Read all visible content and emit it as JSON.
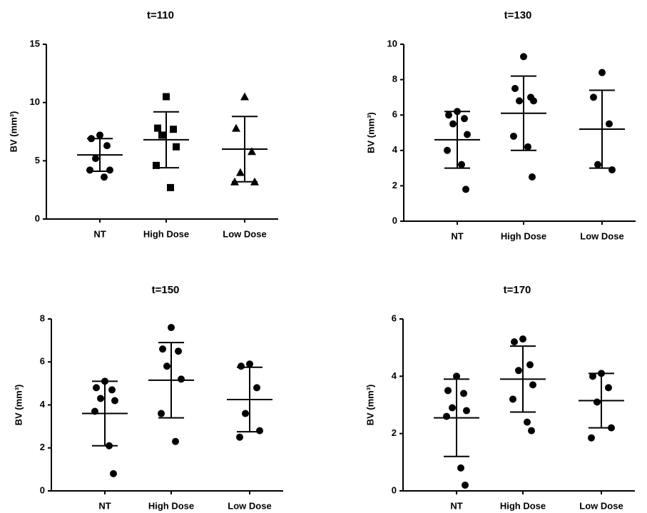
{
  "chart_data": [
    {
      "type": "dot",
      "title": "t=110",
      "y_label": "BV (mm³)",
      "ylim": [
        0,
        15
      ],
      "yticks": [
        0,
        5,
        10,
        15
      ],
      "groups": [
        {
          "name": "NT",
          "marker": "circle",
          "values": [
            7.2,
            6.9,
            6.3,
            5.2,
            4.2,
            4.2,
            3.6
          ],
          "mean": 5.5,
          "sd": 1.4
        },
        {
          "name": "High Dose",
          "marker": "square",
          "values": [
            10.5,
            7.8,
            7.7,
            7.2,
            6.2,
            4.6,
            2.7
          ],
          "mean": 6.8,
          "sd": 2.4
        },
        {
          "name": "Low Dose",
          "marker": "triangle",
          "values": [
            10.5,
            7.8,
            5.8,
            4.0,
            3.2,
            3.2
          ],
          "mean": 6.0,
          "sd": 2.8
        }
      ]
    },
    {
      "type": "dot",
      "title": "t=130",
      "y_label": "BV (mm³)",
      "ylim": [
        0,
        10
      ],
      "yticks": [
        0,
        2,
        4,
        6,
        8,
        10
      ],
      "groups": [
        {
          "name": "NT",
          "marker": "circle",
          "values": [
            6.2,
            6.0,
            5.8,
            5.5,
            4.9,
            4.0,
            3.2,
            1.8
          ],
          "mean": 4.6,
          "sd": 1.6
        },
        {
          "name": "High Dose",
          "marker": "circle",
          "values": [
            9.3,
            7.5,
            7.0,
            6.8,
            6.8,
            4.8,
            4.2,
            2.5
          ],
          "mean": 6.1,
          "sd": 2.1
        },
        {
          "name": "Low Dose",
          "marker": "circle",
          "values": [
            8.4,
            7.0,
            5.5,
            3.2,
            2.9
          ],
          "mean": 5.2,
          "sd": 2.2
        }
      ]
    },
    {
      "type": "dot",
      "title": "t=150",
      "y_label": "BV (mm³)",
      "ylim": [
        0,
        8
      ],
      "yticks": [
        0,
        2,
        4,
        6,
        8
      ],
      "groups": [
        {
          "name": "NT",
          "marker": "circle",
          "values": [
            5.1,
            4.8,
            4.7,
            4.3,
            4.2,
            3.7,
            2.1,
            0.8
          ],
          "mean": 3.6,
          "sd": 1.5
        },
        {
          "name": "High Dose",
          "marker": "circle",
          "values": [
            7.6,
            6.6,
            6.5,
            5.8,
            5.2,
            3.6,
            2.3
          ],
          "mean": 5.15,
          "sd": 1.75
        },
        {
          "name": "Low Dose",
          "marker": "circle",
          "values": [
            5.9,
            5.8,
            4.8,
            3.6,
            2.8,
            2.5
          ],
          "mean": 4.25,
          "sd": 1.5
        }
      ]
    },
    {
      "type": "dot",
      "title": "t=170",
      "y_label": "BV (mm³)",
      "ylim": [
        0,
        6
      ],
      "yticks": [
        0,
        2,
        4,
        6
      ],
      "groups": [
        {
          "name": "NT",
          "marker": "circle",
          "values": [
            4.0,
            3.5,
            3.4,
            2.9,
            2.8,
            2.6,
            0.8,
            0.2
          ],
          "mean": 2.55,
          "sd": 1.35
        },
        {
          "name": "High Dose",
          "marker": "circle",
          "values": [
            5.3,
            5.2,
            4.4,
            4.2,
            3.7,
            3.2,
            2.4,
            2.1
          ],
          "mean": 3.9,
          "sd": 1.15
        },
        {
          "name": "Low Dose",
          "marker": "circle",
          "values": [
            4.1,
            4.0,
            3.6,
            3.1,
            2.2,
            1.85
          ],
          "mean": 3.15,
          "sd": 0.95
        }
      ]
    }
  ]
}
